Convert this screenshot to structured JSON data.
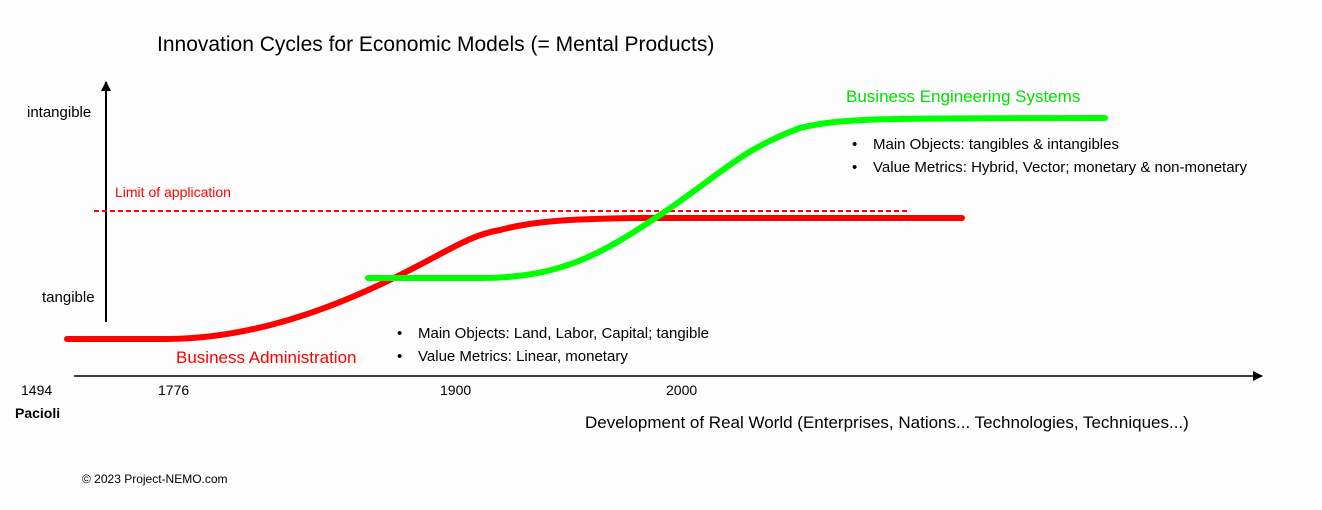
{
  "title": "Innovation Cycles for Economic Models (= Mental Products)",
  "y_axis": {
    "top_label": "intangible",
    "bottom_label": "tangible"
  },
  "limit_label": "Limit of application",
  "x_axis": {
    "label": "Development of Real World (Enterprises, Nations... Technologies, Techniques...)",
    "ticks": [
      "1494",
      "1776",
      "1900",
      "2000"
    ],
    "origin_note": "Pacioli"
  },
  "series": {
    "business_engineering": {
      "name": "Business Engineering Systems",
      "color": "#00ff00",
      "bullets": [
        "Main Objects: tangibles & intangibles",
        "Value Metrics: Hybrid, Vector; monetary & non-monetary"
      ]
    },
    "business_administration": {
      "name": "Business Administration",
      "color": "#ff0000",
      "bullets": [
        "Main Objects: Land, Labor, Capital; tangible",
        "Value Metrics: Linear, monetary"
      ]
    }
  },
  "copyright": "© 2023 Project-NEMO.com"
}
